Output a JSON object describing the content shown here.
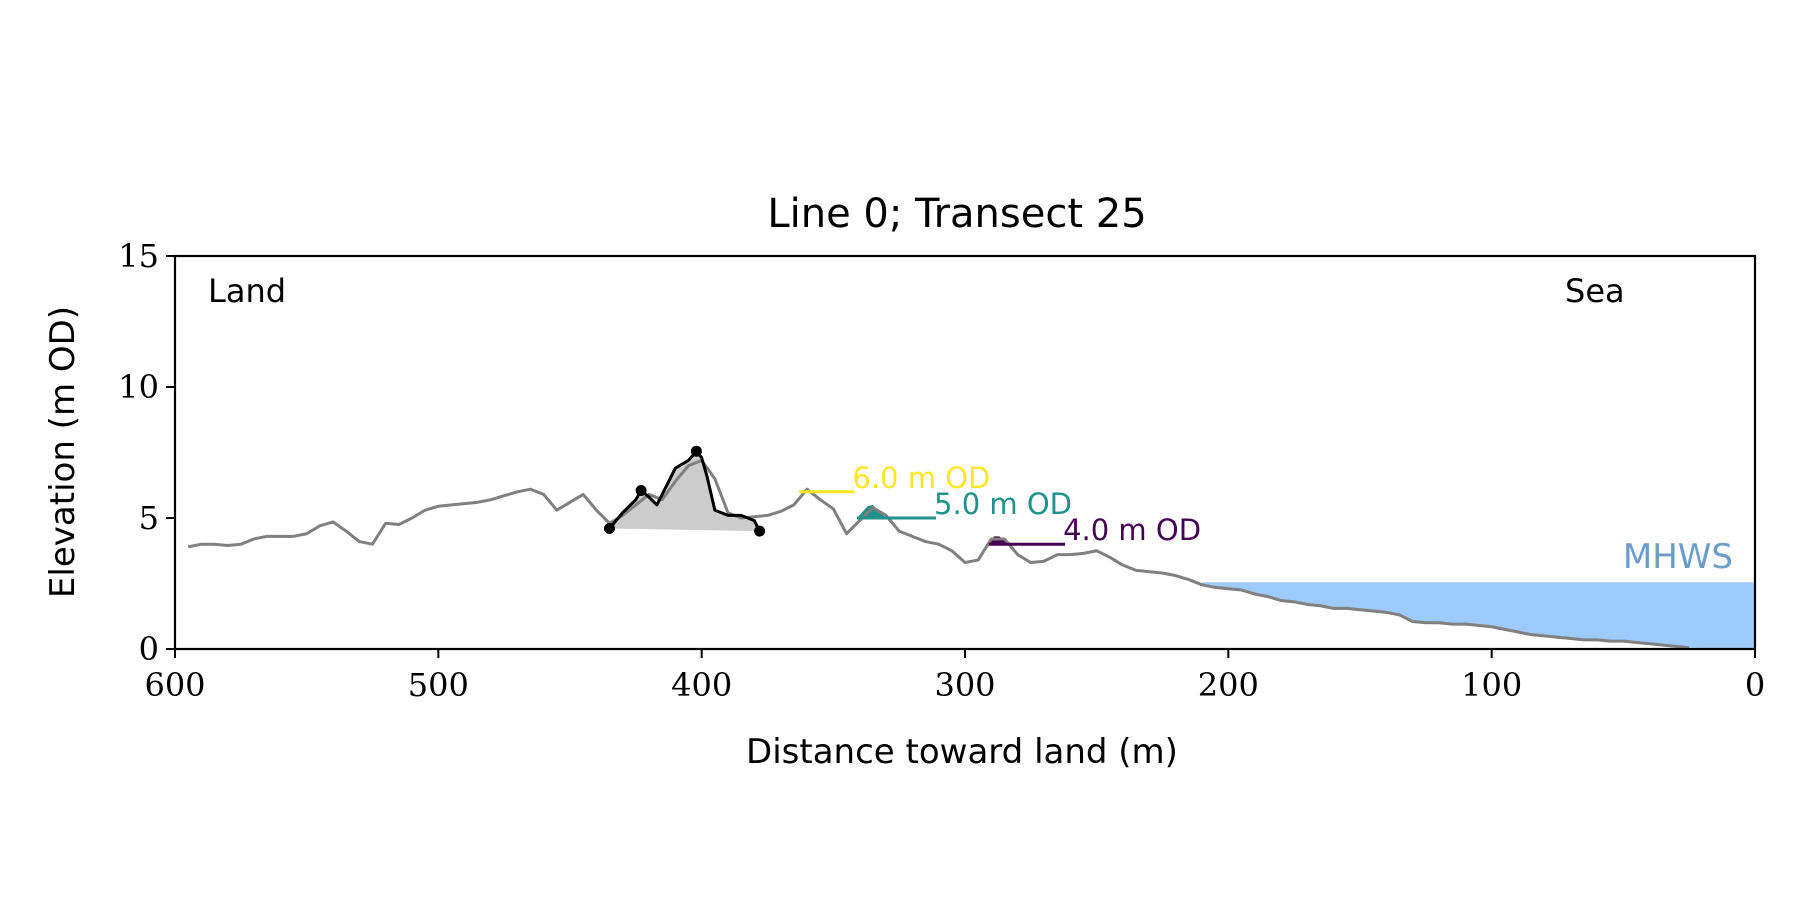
{
  "chart_data": {
    "type": "line",
    "title": "Line 0; Transect 25",
    "xlabel": "Distance toward land (m)",
    "ylabel": "Elevation (m OD)",
    "xlim": [
      600,
      0
    ],
    "ylim": [
      0,
      15
    ],
    "x_ticks": [
      600,
      500,
      400,
      300,
      200,
      100,
      0
    ],
    "x_tick_labels": [
      "600",
      "500",
      "400",
      "300",
      "200",
      "100",
      "0"
    ],
    "y_ticks": [
      0,
      5,
      10,
      15
    ],
    "y_tick_labels": [
      "0",
      "5",
      "10",
      "15"
    ],
    "grid": false,
    "colors": {
      "profile": "#808080",
      "dune": "#000000",
      "dune_fill": "#cccccc",
      "sea": "#9dcbfb",
      "mhws_text": "#6a9ccc",
      "level_6": "#fde725",
      "level_5": "#21918c",
      "level_4": "#440154"
    },
    "annotations": {
      "land": "Land",
      "sea": "Sea"
    },
    "mhws": {
      "label": "MHWS",
      "elevation": 2.55,
      "x_start": 210,
      "x_end": 0
    },
    "profile": {
      "x": [
        595,
        590,
        585,
        580,
        575,
        570,
        565,
        560,
        555,
        550,
        545,
        540,
        535,
        530,
        525,
        520,
        515,
        510,
        505,
        500,
        495,
        490,
        485,
        480,
        475,
        470,
        465,
        460,
        455,
        450,
        445,
        440,
        435,
        430,
        425,
        420,
        415,
        410,
        405,
        400,
        395,
        390,
        385,
        380,
        375,
        370,
        365,
        360,
        355,
        350,
        345,
        340,
        335,
        330,
        325,
        320,
        315,
        310,
        305,
        300,
        295,
        290,
        285,
        280,
        275,
        270,
        265,
        260,
        255,
        250,
        245,
        240,
        235,
        230,
        225,
        220,
        215,
        210,
        205,
        200,
        195,
        190,
        185,
        180,
        175,
        170,
        165,
        160,
        155,
        150,
        145,
        140,
        135,
        130,
        125,
        120,
        115,
        110,
        105,
        100,
        95,
        90,
        85,
        80,
        75,
        70,
        65,
        60,
        55,
        50,
        45,
        40,
        35,
        30,
        25
      ],
      "y": [
        3.9,
        4.0,
        4.0,
        3.95,
        4.0,
        4.2,
        4.3,
        4.3,
        4.3,
        4.4,
        4.7,
        4.85,
        4.5,
        4.1,
        4.0,
        4.8,
        4.75,
        5.0,
        5.3,
        5.45,
        5.5,
        5.55,
        5.6,
        5.7,
        5.85,
        6.0,
        6.1,
        5.9,
        5.3,
        5.6,
        5.9,
        5.3,
        4.8,
        5.1,
        5.5,
        5.9,
        5.7,
        6.4,
        7.0,
        7.2,
        6.5,
        5.2,
        5.0,
        5.05,
        5.1,
        5.25,
        5.5,
        6.1,
        5.7,
        5.35,
        4.4,
        4.9,
        5.4,
        5.1,
        4.5,
        4.3,
        4.1,
        4.0,
        3.75,
        3.3,
        3.4,
        4.2,
        4.2,
        3.6,
        3.3,
        3.35,
        3.6,
        3.6,
        3.65,
        3.75,
        3.5,
        3.2,
        3.0,
        2.95,
        2.9,
        2.8,
        2.65,
        2.45,
        2.35,
        2.3,
        2.25,
        2.1,
        2.0,
        1.85,
        1.8,
        1.7,
        1.65,
        1.55,
        1.55,
        1.5,
        1.45,
        1.4,
        1.3,
        1.05,
        1.0,
        1.0,
        0.95,
        0.95,
        0.9,
        0.85,
        0.75,
        0.65,
        0.55,
        0.5,
        0.45,
        0.4,
        0.35,
        0.35,
        0.3,
        0.3,
        0.25,
        0.2,
        0.15,
        0.1,
        0.05
      ]
    },
    "dune": {
      "x": [
        435,
        430,
        425,
        423,
        420,
        417,
        413,
        410,
        405,
        402,
        400,
        398,
        395,
        390,
        385,
        380,
        378
      ],
      "y": [
        4.6,
        5.2,
        5.7,
        6.05,
        5.8,
        5.5,
        6.3,
        6.9,
        7.2,
        7.55,
        7.3,
        6.6,
        5.3,
        5.1,
        5.1,
        4.9,
        4.5
      ],
      "markers": [
        {
          "x": 435,
          "y": 4.6
        },
        {
          "x": 423,
          "y": 6.05
        },
        {
          "x": 402,
          "y": 7.55
        },
        {
          "x": 378,
          "y": 4.5
        }
      ],
      "base": [
        {
          "x": 435,
          "y": 4.6
        },
        {
          "x": 378,
          "y": 4.5
        }
      ]
    },
    "levels": [
      {
        "label": "6.0 m OD",
        "color_key": "level_6",
        "elevation": 6.0,
        "x_start": 363,
        "x_end": 342,
        "fill": []
      },
      {
        "label": "5.0 m OD",
        "color_key": "level_5",
        "elevation": 5.0,
        "x_start": 341,
        "x_end": 311,
        "fill": [
          {
            "x": 341,
            "y": 5.0
          },
          {
            "x": 337,
            "y": 5.45
          },
          {
            "x": 335,
            "y": 5.5
          },
          {
            "x": 332,
            "y": 5.2
          },
          {
            "x": 330,
            "y": 5.0
          }
        ]
      },
      {
        "label": "4.0 m OD",
        "color_key": "level_4",
        "elevation": 4.0,
        "x_start": 291,
        "x_end": 262,
        "fill": [
          {
            "x": 291,
            "y": 4.0
          },
          {
            "x": 289,
            "y": 4.3
          },
          {
            "x": 287,
            "y": 4.3
          },
          {
            "x": 284,
            "y": 4.1
          },
          {
            "x": 282,
            "y": 4.0
          }
        ]
      }
    ]
  }
}
